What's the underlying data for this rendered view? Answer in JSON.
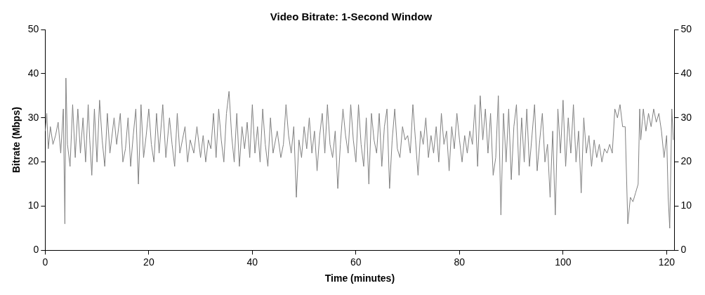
{
  "chart_data": {
    "type": "line",
    "title": "Video Bitrate: 1-Second Window",
    "xlabel": "Time (minutes)",
    "ylabel": "Bitrate (Mbps)",
    "x": [
      0,
      0.3,
      0.6,
      1,
      1.5,
      2,
      2.5,
      3,
      3.5,
      3.8,
      4,
      4.3,
      4.8,
      5.3,
      5.8,
      6.3,
      6.8,
      7.3,
      7.8,
      8.3,
      8.6,
      9,
      9.5,
      10,
      10.5,
      11,
      11.5,
      12,
      12.5,
      13.3,
      13.8,
      14.5,
      15,
      15.5,
      16,
      16.5,
      17,
      17.5,
      18,
      18.5,
      19,
      19.5,
      20,
      20.5,
      21,
      21.5,
      22,
      22.7,
      23.3,
      24,
      24.5,
      25,
      25.5,
      26,
      27,
      27.5,
      28,
      28.7,
      29.3,
      30,
      30.5,
      31,
      31.5,
      32,
      32.5,
      33,
      33.5,
      34,
      34.5,
      35,
      35.5,
      36,
      36.5,
      37,
      37.5,
      38,
      38.5,
      39,
      39.5,
      40,
      40.5,
      41,
      41.5,
      42,
      42.5,
      43,
      43.5,
      44,
      44.8,
      45.5,
      46,
      46.5,
      47,
      47.5,
      48,
      48.5,
      49,
      49.5,
      50,
      50.5,
      51,
      51.5,
      52,
      52.5,
      53,
      53.5,
      54,
      54.5,
      55,
      55.5,
      56,
      56.5,
      57,
      57.5,
      58,
      58.5,
      59,
      59.5,
      60,
      60.5,
      61,
      61.5,
      62,
      62.5,
      63,
      63.5,
      64,
      64.5,
      65,
      65.5,
      66,
      66.5,
      67,
      67.5,
      68,
      68.5,
      69,
      69.5,
      70,
      70.5,
      71,
      71.5,
      72,
      72.5,
      73,
      73.5,
      74,
      74.5,
      75,
      75.5,
      76,
      76.5,
      77,
      77.5,
      78,
      78.5,
      79,
      79.5,
      80,
      80.5,
      81,
      81.5,
      82,
      82.5,
      83,
      83.5,
      84,
      84.5,
      85,
      85.5,
      86,
      86.5,
      87,
      87.5,
      88,
      88.5,
      89,
      89.5,
      90,
      90.5,
      91,
      91.5,
      92,
      92.5,
      93,
      93.5,
      94,
      94.5,
      95,
      95.5,
      96,
      96.5,
      97,
      97.5,
      98,
      98.5,
      99,
      99.5,
      100,
      100.5,
      101,
      101.5,
      102,
      102.5,
      103,
      103.5,
      104,
      104.5,
      105,
      105.5,
      106,
      106.5,
      107,
      107.5,
      108,
      108.5,
      109,
      109.5,
      110,
      110.5,
      111,
      111.5,
      112,
      112.5,
      113,
      113.5,
      114,
      114.5,
      114.8,
      115,
      115.5,
      116,
      116.5,
      117,
      117.5,
      118,
      118.5,
      119,
      119.5,
      120,
      120.3,
      120.6,
      121,
      121.3
    ],
    "series": [
      {
        "color": "#808080",
        "values": [
          27,
          31,
          23,
          28,
          24,
          26,
          29,
          22,
          32,
          6,
          39,
          24,
          19,
          33,
          21,
          32,
          22,
          30,
          20,
          33,
          25,
          17,
          32,
          20,
          34,
          25,
          19,
          31,
          22,
          30,
          24,
          31,
          20,
          23,
          30,
          19,
          26,
          32,
          15,
          33,
          21,
          26,
          32,
          24,
          20,
          31,
          22,
          33,
          21,
          30,
          24,
          19,
          31,
          22,
          28,
          20,
          25,
          22,
          28,
          21,
          26,
          20,
          25,
          23,
          31,
          21,
          32,
          25,
          20,
          31,
          36,
          26,
          20,
          31,
          19,
          28,
          23,
          29,
          21,
          33,
          22,
          28,
          20,
          32,
          24,
          19,
          30,
          22,
          27,
          21,
          24,
          33,
          26,
          22,
          28,
          12,
          25,
          21,
          28,
          23,
          30,
          22,
          27,
          18,
          26,
          31,
          22,
          33,
          24,
          21,
          27,
          14,
          24,
          32,
          26,
          22,
          33,
          25,
          20,
          33,
          24,
          19,
          30,
          15,
          31,
          25,
          22,
          31,
          19,
          28,
          32,
          14,
          25,
          32,
          23,
          21,
          28,
          25,
          26,
          22,
          33,
          25,
          17,
          27,
          24,
          30,
          21,
          26,
          22,
          28,
          20,
          31,
          24,
          27,
          18,
          28,
          23,
          31,
          25,
          20,
          26,
          22,
          27,
          24,
          33,
          19,
          35,
          25,
          32,
          22,
          31,
          17,
          21,
          35,
          8,
          31,
          20,
          32,
          16,
          28,
          33,
          17,
          30,
          20,
          32,
          19,
          26,
          33,
          18,
          25,
          31,
          20,
          24,
          12,
          27,
          8,
          32,
          22,
          34,
          19,
          30,
          22,
          33,
          20,
          27,
          13,
          30,
          22,
          26,
          19,
          25,
          21,
          24,
          20,
          23,
          22,
          24,
          22,
          32,
          30,
          33,
          28,
          28,
          6,
          12,
          11,
          13,
          15,
          32,
          25,
          32,
          27,
          31,
          28,
          32,
          29,
          31,
          27,
          21,
          26,
          12,
          5,
          32,
          25
        ]
      }
    ],
    "xlim": [
      0,
      121.5
    ],
    "xticks": [
      0,
      20,
      40,
      60,
      80,
      100,
      120
    ],
    "ylim": [
      0,
      50
    ],
    "yticks": [
      0,
      10,
      20,
      30,
      40,
      50
    ],
    "y2lim": [
      0,
      50
    ],
    "y2ticks": [
      0,
      10,
      20,
      30,
      40,
      50
    ],
    "grid": false,
    "legend": false,
    "marker": "none",
    "line_style": "solid"
  }
}
